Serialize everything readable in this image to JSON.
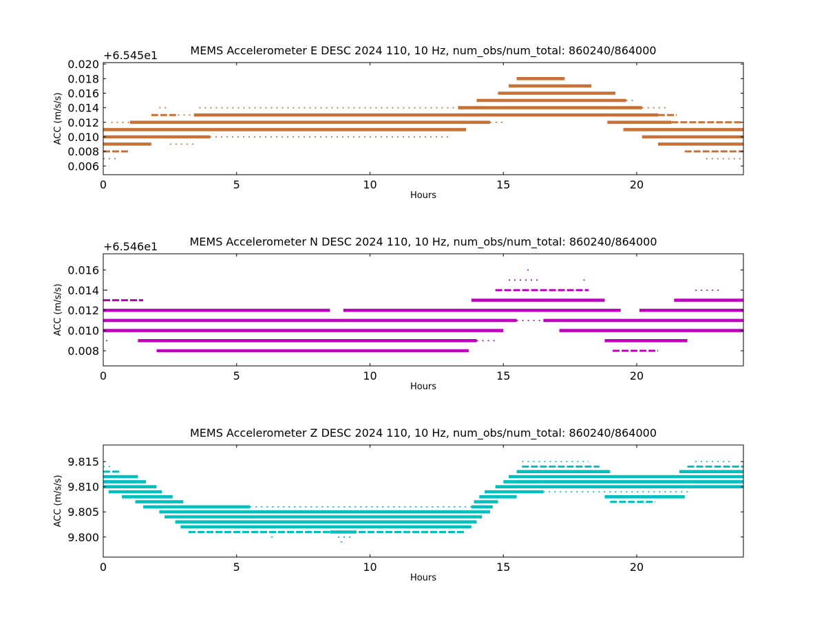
{
  "chart_data": [
    {
      "type": "scatter",
      "title": "MEMS Accelerometer E DESC 2024 110, 10 Hz, num_obs/num_total: 860240/864000",
      "xlabel": "Hours",
      "ylabel": "ACC (m/s/s)",
      "offset_label": "+6.545e1",
      "color": "#c87137",
      "xlim": [
        0,
        24
      ],
      "ylim": [
        0.0048,
        0.0202
      ],
      "xticks": [
        0,
        5,
        10,
        15,
        20
      ],
      "xtick_labels": [
        "0",
        "5",
        "10",
        "15",
        "20"
      ],
      "yticks": [
        0.006,
        0.008,
        0.01,
        0.012,
        0.014,
        0.016,
        0.018,
        0.02
      ],
      "ytick_labels": [
        "0.006",
        "0.008",
        "0.010",
        "0.012",
        "0.014",
        "0.016",
        "0.018",
        "0.020"
      ],
      "series": [
        {
          "y": 0.018,
          "x": [
            [
              15.5,
              17.3,
              "dense"
            ]
          ]
        },
        {
          "y": 0.017,
          "x": [
            [
              15.2,
              18.3,
              "dense"
            ]
          ]
        },
        {
          "y": 0.016,
          "x": [
            [
              14.8,
              19.2,
              "dense"
            ]
          ]
        },
        {
          "y": 0.015,
          "x": [
            [
              14.0,
              19.6,
              "dense"
            ],
            [
              19.6,
              20.0,
              "sparse"
            ]
          ]
        },
        {
          "y": 0.014,
          "x": [
            [
              3.6,
              13.3,
              "sparse"
            ],
            [
              13.3,
              20.2,
              "dense"
            ],
            [
              20.2,
              21.1,
              "sparse"
            ],
            [
              2.1,
              2.5,
              "sparse"
            ]
          ]
        },
        {
          "y": 0.013,
          "x": [
            [
              1.8,
              2.8,
              "medium"
            ],
            [
              2.8,
              3.4,
              "sparse"
            ],
            [
              3.4,
              20.8,
              "dense"
            ],
            [
              20.8,
              21.5,
              "medium"
            ]
          ]
        },
        {
          "y": 0.012,
          "x": [
            [
              0.3,
              1.0,
              "sparse"
            ],
            [
              1.0,
              14.5,
              "dense"
            ],
            [
              14.5,
              15.0,
              "sparse"
            ],
            [
              18.9,
              21.3,
              "dense"
            ],
            [
              21.3,
              24.0,
              "medium"
            ]
          ]
        },
        {
          "y": 0.011,
          "x": [
            [
              0.0,
              13.6,
              "dense"
            ],
            [
              19.5,
              24.0,
              "dense"
            ]
          ]
        },
        {
          "y": 0.01,
          "x": [
            [
              0.0,
              4.0,
              "dense"
            ],
            [
              4.0,
              13.0,
              "sparse"
            ],
            [
              20.2,
              24.0,
              "dense"
            ]
          ]
        },
        {
          "y": 0.009,
          "x": [
            [
              0.0,
              1.8,
              "dense"
            ],
            [
              2.5,
              3.4,
              "sparse"
            ],
            [
              20.8,
              24.0,
              "dense"
            ]
          ]
        },
        {
          "y": 0.008,
          "x": [
            [
              0.0,
              1.0,
              "medium"
            ],
            [
              21.8,
              24.0,
              "medium"
            ]
          ]
        },
        {
          "y": 0.007,
          "x": [
            [
              0.0,
              0.6,
              "sparse"
            ],
            [
              22.6,
              24.0,
              "sparse"
            ]
          ]
        }
      ]
    },
    {
      "type": "scatter",
      "title": "MEMS Accelerometer N DESC 2024 110, 10 Hz, num_obs/num_total: 860240/864000",
      "xlabel": "Hours",
      "ylabel": "ACC (m/s/s)",
      "offset_label": "+6.546e1",
      "color": "#bf00bf",
      "xlim": [
        0,
        24
      ],
      "ylim": [
        0.0065,
        0.0176
      ],
      "xticks": [
        0,
        5,
        10,
        15,
        20
      ],
      "xtick_labels": [
        "0",
        "5",
        "10",
        "15",
        "20"
      ],
      "yticks": [
        0.008,
        0.01,
        0.012,
        0.014,
        0.016
      ],
      "ytick_labels": [
        "0.008",
        "0.010",
        "0.012",
        "0.014",
        "0.016"
      ],
      "series": [
        {
          "y": 0.016,
          "x": [
            [
              15.9,
              16.0,
              "sparse"
            ]
          ]
        },
        {
          "y": 0.015,
          "x": [
            [
              15.2,
              16.3,
              "sparse"
            ],
            [
              18.0,
              18.1,
              "sparse"
            ]
          ]
        },
        {
          "y": 0.014,
          "x": [
            [
              0.1,
              0.3,
              "sparse"
            ],
            [
              14.7,
              18.2,
              "medium"
            ],
            [
              22.2,
              23.2,
              "sparse"
            ]
          ]
        },
        {
          "y": 0.013,
          "x": [
            [
              0.0,
              1.5,
              "medium"
            ],
            [
              13.8,
              18.8,
              "dense"
            ],
            [
              21.4,
              24.0,
              "dense"
            ]
          ]
        },
        {
          "y": 0.012,
          "x": [
            [
              0.0,
              8.5,
              "dense"
            ],
            [
              9.0,
              19.4,
              "dense"
            ],
            [
              20.1,
              24.0,
              "dense"
            ]
          ]
        },
        {
          "y": 0.011,
          "x": [
            [
              0.0,
              15.5,
              "dense"
            ],
            [
              15.5,
              16.5,
              "sparse"
            ],
            [
              16.5,
              24.0,
              "dense"
            ]
          ]
        },
        {
          "y": 0.01,
          "x": [
            [
              0.0,
              15.0,
              "dense"
            ],
            [
              17.1,
              24.0,
              "dense"
            ]
          ]
        },
        {
          "y": 0.009,
          "x": [
            [
              0.1,
              0.3,
              "sparse"
            ],
            [
              1.3,
              14.0,
              "dense"
            ],
            [
              14.0,
              14.7,
              "sparse"
            ],
            [
              18.8,
              21.9,
              "dense"
            ]
          ]
        },
        {
          "y": 0.008,
          "x": [
            [
              2.0,
              13.7,
              "dense"
            ],
            [
              19.1,
              20.8,
              "medium"
            ]
          ]
        }
      ]
    },
    {
      "type": "scatter",
      "title": "MEMS Accelerometer Z DESC 2024 110, 10 Hz, num_obs/num_total: 860240/864000",
      "xlabel": "Hours",
      "ylabel": "ACC (m/s/s)",
      "offset_label": "",
      "color": "#00bfbf",
      "xlim": [
        0,
        24
      ],
      "ylim": [
        9.796,
        9.8183
      ],
      "xticks": [
        0,
        5,
        10,
        15,
        20
      ],
      "xtick_labels": [
        "0",
        "5",
        "10",
        "15",
        "20"
      ],
      "yticks": [
        9.8,
        9.805,
        9.81,
        9.815
      ],
      "ytick_labels": [
        "9.800",
        "9.805",
        "9.810",
        "9.815"
      ],
      "series": [
        {
          "y": 9.815,
          "x": [
            [
              15.7,
              18.2,
              "sparse"
            ],
            [
              22.2,
              23.5,
              "sparse"
            ]
          ]
        },
        {
          "y": 9.814,
          "x": [
            [
              0.0,
              0.3,
              "sparse"
            ],
            [
              15.7,
              18.6,
              "medium"
            ],
            [
              21.9,
              24.0,
              "medium"
            ]
          ]
        },
        {
          "y": 9.813,
          "x": [
            [
              0.0,
              0.6,
              "medium"
            ],
            [
              15.5,
              19.0,
              "dense"
            ],
            [
              21.6,
              24.0,
              "dense"
            ]
          ]
        },
        {
          "y": 9.812,
          "x": [
            [
              0.0,
              1.3,
              "dense"
            ],
            [
              15.2,
              24.0,
              "dense"
            ]
          ]
        },
        {
          "y": 9.811,
          "x": [
            [
              0.0,
              1.6,
              "dense"
            ],
            [
              15.0,
              24.0,
              "dense"
            ]
          ]
        },
        {
          "y": 9.81,
          "x": [
            [
              0.0,
              2.0,
              "dense"
            ],
            [
              14.7,
              24.0,
              "dense"
            ]
          ]
        },
        {
          "y": 9.809,
          "x": [
            [
              0.2,
              2.2,
              "dense"
            ],
            [
              14.3,
              16.5,
              "dense"
            ],
            [
              16.5,
              22.0,
              "sparse"
            ]
          ]
        },
        {
          "y": 9.808,
          "x": [
            [
              0.7,
              2.6,
              "dense"
            ],
            [
              14.1,
              15.5,
              "dense"
            ],
            [
              18.8,
              21.8,
              "dense"
            ]
          ]
        },
        {
          "y": 9.807,
          "x": [
            [
              1.2,
              3.0,
              "dense"
            ],
            [
              13.9,
              14.8,
              "dense"
            ],
            [
              19.0,
              20.7,
              "medium"
            ]
          ]
        },
        {
          "y": 9.806,
          "x": [
            [
              1.5,
              5.5,
              "dense"
            ],
            [
              5.5,
              13.8,
              "sparse"
            ],
            [
              13.8,
              14.6,
              "dense"
            ]
          ]
        },
        {
          "y": 9.805,
          "x": [
            [
              2.1,
              14.5,
              "dense"
            ],
            [
              8.7,
              9.4,
              "sparse"
            ]
          ]
        },
        {
          "y": 9.804,
          "x": [
            [
              2.3,
              14.2,
              "dense"
            ]
          ]
        },
        {
          "y": 9.803,
          "x": [
            [
              2.7,
              14.0,
              "dense"
            ]
          ]
        },
        {
          "y": 9.802,
          "x": [
            [
              2.9,
              13.8,
              "dense"
            ]
          ]
        },
        {
          "y": 9.801,
          "x": [
            [
              3.2,
              13.6,
              "medium"
            ],
            [
              8.5,
              9.5,
              "dense"
            ]
          ]
        },
        {
          "y": 9.8,
          "x": [
            [
              6.3,
              6.4,
              "sparse"
            ],
            [
              8.8,
              9.3,
              "sparse"
            ]
          ]
        },
        {
          "y": 9.799,
          "x": [
            [
              8.9,
              9.0,
              "sparse"
            ]
          ]
        }
      ]
    }
  ]
}
